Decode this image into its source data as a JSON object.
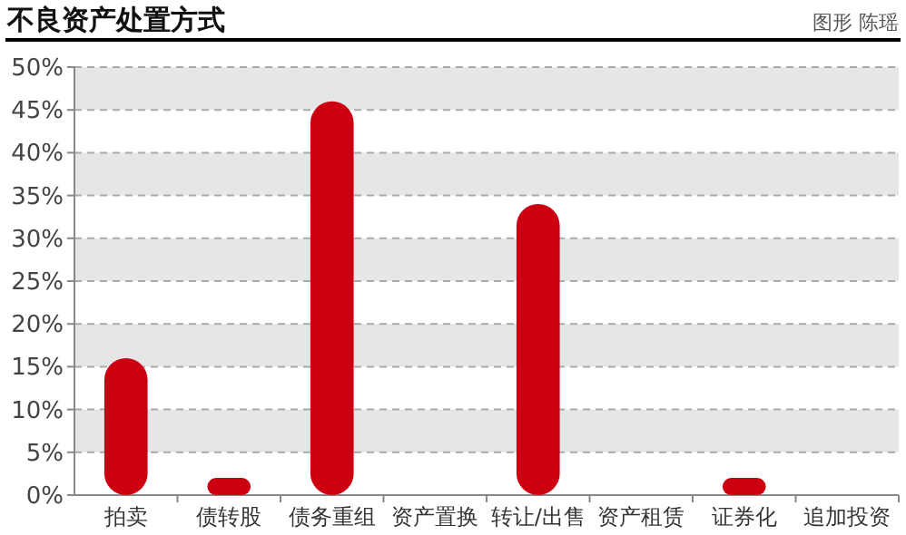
{
  "chart_data": {
    "type": "bar",
    "title": "不良资产处置方式",
    "annotations": [
      "图形 陈瑶"
    ],
    "categories": [
      "拍卖",
      "债转股",
      "债务重组",
      "资产置换",
      "转让/出售",
      "资产租赁",
      "证券化",
      "追加投资"
    ],
    "values": [
      16,
      2,
      46,
      0,
      34,
      0,
      2,
      0
    ],
    "color": "#cc0011",
    "ylim": [
      0,
      50
    ],
    "yticks": [
      {
        "value": 0,
        "label": "0%"
      },
      {
        "value": 5,
        "label": "5%"
      },
      {
        "value": 10,
        "label": "10%"
      },
      {
        "value": 15,
        "label": "15%"
      },
      {
        "value": 20,
        "label": "20%"
      },
      {
        "value": 25,
        "label": "25%"
      },
      {
        "value": 30,
        "label": "30%"
      },
      {
        "value": 35,
        "label": "35%"
      },
      {
        "value": 40,
        "label": "40%"
      },
      {
        "value": 45,
        "label": "45%"
      },
      {
        "value": 50,
        "label": "50%"
      }
    ],
    "bands": [
      {
        "axis": "y",
        "from": 5,
        "to": 10,
        "color": "#e6e6e6"
      },
      {
        "axis": "y",
        "from": 15,
        "to": 20,
        "color": "#e6e6e6"
      },
      {
        "axis": "y",
        "from": 25,
        "to": 30,
        "color": "#e6e6e6"
      },
      {
        "axis": "y",
        "from": 35,
        "to": 40,
        "color": "#e6e6e6"
      },
      {
        "axis": "y",
        "from": 45,
        "to": 50,
        "color": "#e6e6e6"
      }
    ],
    "grid": "y"
  }
}
